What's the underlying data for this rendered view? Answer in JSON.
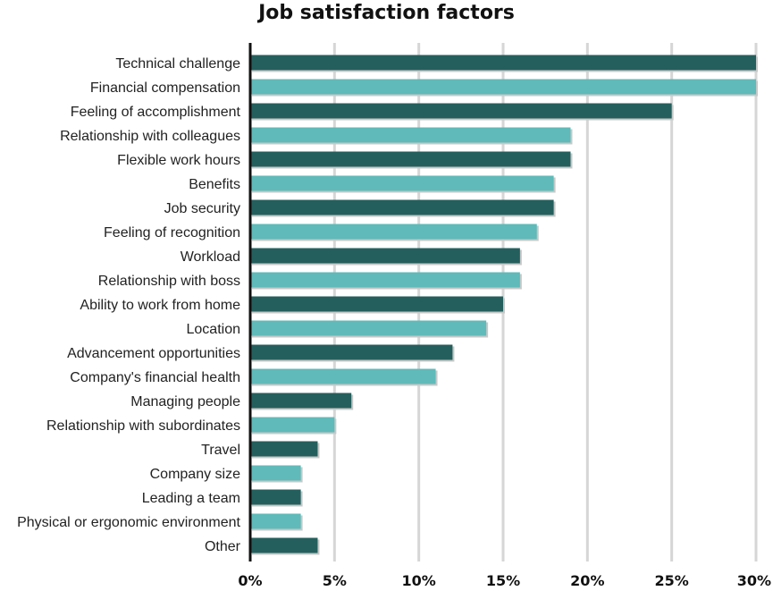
{
  "chart_data": {
    "type": "bar",
    "orientation": "horizontal",
    "title": "Job satisfaction factors",
    "xlabel": "",
    "ylabel": "",
    "xlim": [
      0,
      30
    ],
    "ticks": [
      0,
      5,
      10,
      15,
      20,
      25,
      30
    ],
    "tick_labels": [
      "0%",
      "5%",
      "10%",
      "15%",
      "20%",
      "25%",
      "30%"
    ],
    "grid": "vertical",
    "legend": "none",
    "categories": [
      "Technical challenge",
      "Financial compensation",
      "Feeling of accomplishment",
      "Relationship with colleagues",
      "Flexible work hours",
      "Benefits",
      "Job security",
      "Feeling of recognition",
      "Workload",
      "Relationship with boss",
      "Ability to work from home",
      "Location",
      "Advancement opportunities",
      "Company's financial health",
      "Managing people",
      "Relationship with subordinates",
      "Travel",
      "Company size",
      "Leading a team",
      "Physical or ergonomic environment",
      "Other"
    ],
    "values": [
      30,
      30,
      25,
      19,
      19,
      18,
      18,
      17,
      16,
      16,
      15,
      14,
      12,
      11,
      6,
      5,
      4,
      3,
      3,
      3,
      4
    ],
    "colors": [
      "#255f5d",
      "#5fbab9"
    ],
    "axis_color": "#111111",
    "grid_color": "#d6d6d6",
    "shadow_color": "#c8c8c8"
  }
}
